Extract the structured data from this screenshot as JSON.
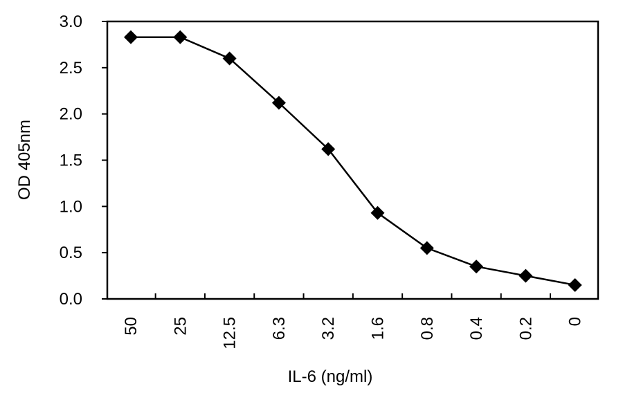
{
  "chart_data": {
    "type": "line",
    "xlabel": "IL-6 (ng/ml)",
    "ylabel": "OD 405nm",
    "ylim": [
      0,
      3.0
    ],
    "yticks": [
      "0.0",
      "0.5",
      "1.0",
      "1.5",
      "2.0",
      "2.5",
      "3.0"
    ],
    "categories": [
      "50",
      "25",
      "12.5",
      "6.3",
      "3.2",
      "1.6",
      "0.8",
      "0.4",
      "0.2",
      "0"
    ],
    "series": [
      {
        "values": [
          2.83,
          2.83,
          2.6,
          2.12,
          1.62,
          0.93,
          0.55,
          0.35,
          0.25,
          0.15
        ]
      }
    ],
    "grid": false,
    "legend": "none",
    "marker": "diamond",
    "colors": {
      "line": "#000000",
      "marker": "#000000",
      "frame": "#000000"
    }
  }
}
